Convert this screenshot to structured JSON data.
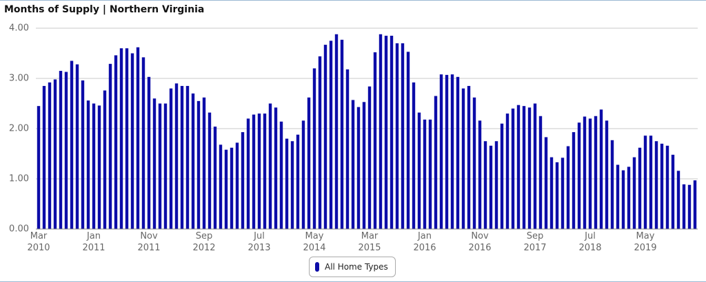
{
  "chart_data": {
    "type": "bar",
    "title": "Months of Supply | Northern Virginia",
    "categories": [
      "Mar 2010",
      null,
      null,
      null,
      null,
      null,
      null,
      null,
      null,
      null,
      "Jan 2011",
      null,
      null,
      null,
      null,
      null,
      null,
      null,
      null,
      null,
      "Nov 2011",
      null,
      null,
      null,
      null,
      null,
      null,
      null,
      null,
      null,
      "Sep 2012",
      null,
      null,
      null,
      null,
      null,
      null,
      null,
      null,
      null,
      "Jul 2013",
      null,
      null,
      null,
      null,
      null,
      null,
      null,
      null,
      null,
      "May 2014",
      null,
      null,
      null,
      null,
      null,
      null,
      null,
      null,
      null,
      "Mar 2015",
      null,
      null,
      null,
      null,
      null,
      null,
      null,
      null,
      null,
      "Jan 2016",
      null,
      null,
      null,
      null,
      null,
      null,
      null,
      null,
      null,
      "Nov 2016",
      null,
      null,
      null,
      null,
      null,
      null,
      null,
      null,
      null,
      "Sep 2017",
      null,
      null,
      null,
      null,
      null,
      null,
      null,
      null,
      null,
      "Jul 2018",
      null,
      null,
      null,
      null,
      null,
      null,
      null,
      null,
      null,
      "May 2019",
      null,
      null,
      null,
      null,
      null,
      null,
      null,
      null,
      null
    ],
    "series": [
      {
        "name": "All Home Types",
        "color": "#0c0ca8",
        "values": [
          2.45,
          2.85,
          2.92,
          2.98,
          3.15,
          3.13,
          3.35,
          3.28,
          2.96,
          2.56,
          2.5,
          2.46,
          2.76,
          3.29,
          3.46,
          3.6,
          3.6,
          3.5,
          3.62,
          3.42,
          3.03,
          2.6,
          2.5,
          2.5,
          2.8,
          2.9,
          2.85,
          2.85,
          2.7,
          2.55,
          2.62,
          2.32,
          2.04,
          1.68,
          1.58,
          1.62,
          1.72,
          1.93,
          2.2,
          2.28,
          2.3,
          2.3,
          2.5,
          2.42,
          2.14,
          1.8,
          1.75,
          1.88,
          2.16,
          2.62,
          3.2,
          3.44,
          3.67,
          3.75,
          3.88,
          3.77,
          3.18,
          2.57,
          2.43,
          2.53,
          2.84,
          3.52,
          3.88,
          3.85,
          3.85,
          3.7,
          3.7,
          3.53,
          2.92,
          2.32,
          2.18,
          2.18,
          2.65,
          3.08,
          3.07,
          3.08,
          3.03,
          2.8,
          2.85,
          2.62,
          2.16,
          1.75,
          1.66,
          1.75,
          2.1,
          2.3,
          2.4,
          2.47,
          2.45,
          2.42,
          2.5,
          2.25,
          1.83,
          1.43,
          1.33,
          1.42,
          1.65,
          1.93,
          2.12,
          2.24,
          2.2,
          2.25,
          2.38,
          2.16,
          1.77,
          1.28,
          1.17,
          1.24,
          1.43,
          1.62,
          1.86,
          1.86,
          1.75,
          1.7,
          1.66,
          1.48,
          1.16,
          0.89,
          0.88,
          0.97
        ]
      }
    ],
    "ylim": [
      0,
      4
    ],
    "yticks": [
      {
        "value": 0,
        "label": "0.00"
      },
      {
        "value": 1,
        "label": "1.00"
      },
      {
        "value": 2,
        "label": "2.00"
      },
      {
        "value": 3,
        "label": "3.00"
      },
      {
        "value": 4,
        "label": "4.00"
      }
    ],
    "grid": true
  }
}
